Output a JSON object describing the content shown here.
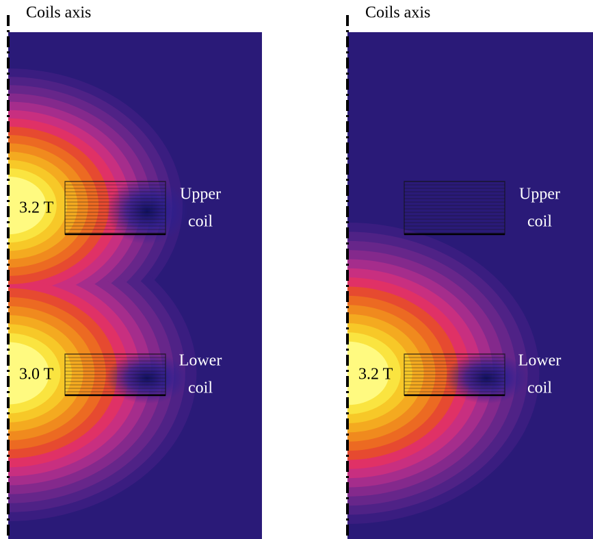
{
  "panels": [
    {
      "axis_label": "Coils axis",
      "coils": [
        {
          "lines": [
            "Upper",
            "coil"
          ]
        },
        {
          "lines": [
            "Lower",
            "coil"
          ]
        }
      ],
      "field_labels": [
        "3.2 T",
        "3.0 T"
      ]
    },
    {
      "axis_label": "Coils axis",
      "coils": [
        {
          "lines": [
            "Upper",
            "coil"
          ]
        },
        {
          "lines": [
            "Lower",
            "coil"
          ]
        }
      ],
      "field_labels": [
        "3.2 T"
      ]
    }
  ]
}
